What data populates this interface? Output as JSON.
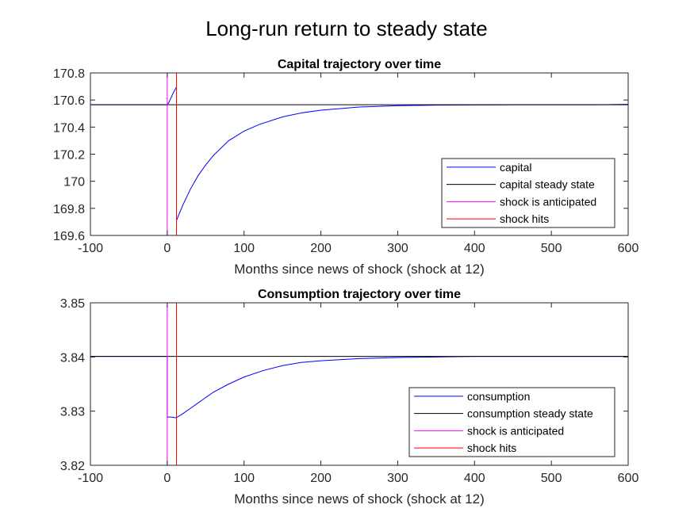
{
  "figure_title": "Long-run return to steady state",
  "chart_data": [
    {
      "type": "line",
      "title": "Capital trajectory over time",
      "xlabel": "Months since news of shock (shock at 12)",
      "ylabel": "",
      "xlim": [
        -100,
        600
      ],
      "ylim": [
        169.6,
        170.8
      ],
      "xticks": [
        -100,
        0,
        100,
        200,
        300,
        400,
        500,
        600
      ],
      "xtick_labels": [
        "-100",
        "0",
        "100",
        "200",
        "300",
        "400",
        "500",
        "600"
      ],
      "yticks": [
        169.6,
        169.8,
        170,
        170.2,
        170.4,
        170.6,
        170.8
      ],
      "ytick_labels": [
        "169.6",
        "169.8",
        "170",
        "170.2",
        "170.4",
        "170.6",
        "170.8"
      ],
      "legend_position": "lower-right",
      "series": [
        {
          "name": "capital",
          "color": "#0000ff",
          "x": [
            -100,
            0,
            2,
            4,
            6,
            8,
            10,
            12,
            12,
            20,
            30,
            40,
            50,
            60,
            80,
            100,
            120,
            150,
            175,
            200,
            250,
            300,
            350,
            400,
            450,
            500,
            550,
            600
          ],
          "y": [
            170.565,
            170.565,
            170.58,
            170.605,
            170.63,
            170.655,
            170.675,
            170.695,
            169.71,
            169.82,
            169.94,
            170.04,
            170.12,
            170.19,
            170.3,
            170.37,
            170.42,
            170.475,
            170.505,
            170.525,
            170.548,
            170.558,
            170.562,
            170.564,
            170.565,
            170.565,
            170.565,
            170.568
          ]
        },
        {
          "name": "capital steady state",
          "color": "#000000",
          "y_const": 170.565
        },
        {
          "name": "shock is anticipated",
          "color": "#ff00ff",
          "x_const": 0
        },
        {
          "name": "shock hits",
          "color": "#ff0000",
          "x_const": 12
        }
      ]
    },
    {
      "type": "line",
      "title": "Consumption trajectory over time",
      "xlabel": "Months since news of shock (shock at 12)",
      "ylabel": "",
      "xlim": [
        -100,
        600
      ],
      "ylim": [
        3.82,
        3.85
      ],
      "xticks": [
        -100,
        0,
        100,
        200,
        300,
        400,
        500,
        600
      ],
      "xtick_labels": [
        "-100",
        "0",
        "100",
        "200",
        "300",
        "400",
        "500",
        "600"
      ],
      "yticks": [
        3.82,
        3.83,
        3.84,
        3.85
      ],
      "ytick_labels": [
        "3.82",
        "3.83",
        "3.84",
        "3.85"
      ],
      "legend_position": "lower-right",
      "series": [
        {
          "name": "consumption",
          "color": "#0000ff",
          "x": [
            -100,
            0,
            0,
            5,
            10,
            12,
            20,
            30,
            40,
            50,
            60,
            80,
            100,
            125,
            150,
            175,
            200,
            250,
            300,
            350,
            400,
            500,
            600
          ],
          "y": [
            3.8401,
            3.8401,
            3.8289,
            3.8289,
            3.8288,
            3.8288,
            3.8295,
            3.8305,
            3.8315,
            3.8325,
            3.8335,
            3.835,
            3.8363,
            3.8375,
            3.8384,
            3.839,
            3.8393,
            3.8397,
            3.8399,
            3.84,
            3.8401,
            3.8401,
            3.8401
          ]
        },
        {
          "name": "consumption steady state",
          "color": "#000000",
          "y_const": 3.8401
        },
        {
          "name": "shock is anticipated",
          "color": "#ff00ff",
          "x_const": 0
        },
        {
          "name": "shock hits",
          "color": "#ff0000",
          "x_const": 12
        }
      ]
    }
  ]
}
